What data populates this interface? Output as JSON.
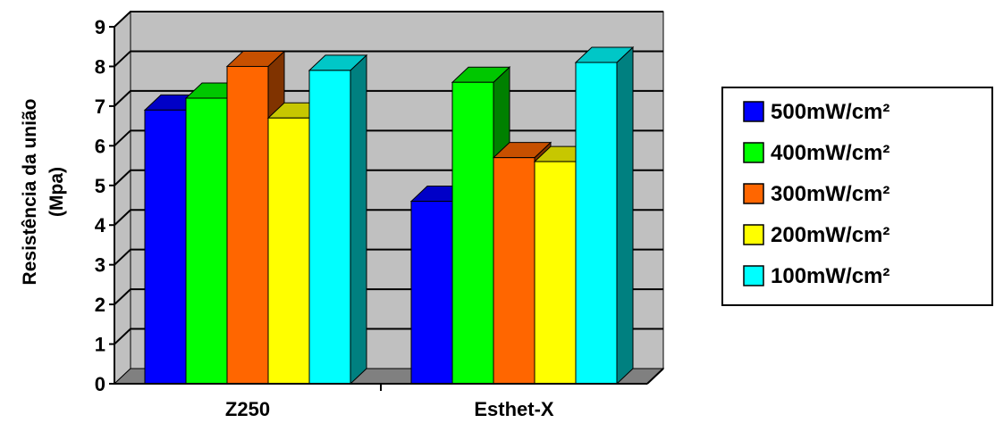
{
  "chart_data": {
    "type": "bar",
    "style": "3d-clustered-column",
    "categories": [
      "Z250",
      "Esthet-X"
    ],
    "ylabel_line1": "Resistência da união",
    "ylabel_line2": "(Mpa)",
    "ylim": [
      0,
      9
    ],
    "yticks": [
      "0",
      "1",
      "2",
      "3",
      "4",
      "5",
      "6",
      "7",
      "8",
      "9"
    ],
    "grid": true,
    "legend_position": "right",
    "series": [
      {
        "name": "500mW/cm²",
        "color": "#0000ff",
        "values": [
          6.9,
          4.6
        ]
      },
      {
        "name": "400mW/cm²",
        "color": "#00ff00",
        "values": [
          7.2,
          7.6
        ]
      },
      {
        "name": "300mW/cm²",
        "color": "#ff6600",
        "values": [
          8.0,
          5.7
        ]
      },
      {
        "name": "200mW/cm²",
        "color": "#ffff00",
        "values": [
          6.7,
          5.6
        ]
      },
      {
        "name": "100mW/cm²",
        "color": "#00ffff",
        "values": [
          7.9,
          8.1
        ]
      }
    ],
    "colors": {
      "wall": "#c0c0c0",
      "floor": "#808080",
      "grid": "#000000"
    }
  }
}
